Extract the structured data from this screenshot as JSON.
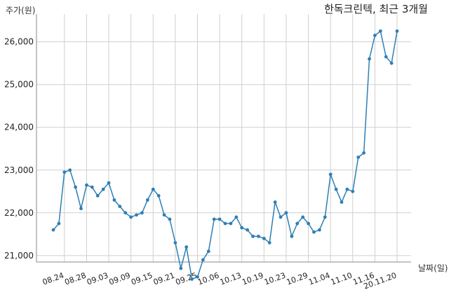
{
  "chart_data": {
    "type": "line",
    "title": "한독크린텍, 최근 3개월",
    "ylabel": "주가(원)",
    "xlabel": "날짜(일)",
    "ylim": [
      20850,
      26650
    ],
    "yticks": [
      21000,
      22000,
      23000,
      24000,
      25000,
      26000
    ],
    "ytick_labels": [
      "21,000",
      "22,000",
      "23,000",
      "24,000",
      "25,000",
      "26,000"
    ],
    "xtick_labels": [
      "08.24",
      "08.28",
      "09.03",
      "09.09",
      "09.15",
      "09.21",
      "09.25",
      "10.06",
      "10.13",
      "10.19",
      "10.23",
      "10.29",
      "11.04",
      "11.10",
      "11.16",
      "20.11.20"
    ],
    "xtick_index": [
      2,
      6,
      10,
      14,
      18,
      22,
      26,
      30,
      34,
      38,
      42,
      46,
      50,
      54,
      58,
      62
    ],
    "grid": true,
    "color": "#2e7fb5",
    "series": [
      {
        "values": [
          21600,
          21750,
          22950,
          23000,
          22600,
          22100,
          22650,
          22600,
          22400,
          22550,
          22700,
          22300,
          22150,
          22000,
          21900,
          21950,
          22000,
          22300,
          22550,
          22400,
          21950,
          21850,
          21300,
          20700,
          21200,
          20450,
          20500,
          20900,
          21100,
          21850,
          21850,
          21750,
          21750,
          21900,
          21650,
          21600,
          21450,
          21450,
          21400,
          21300,
          22250,
          21900,
          22000,
          21450,
          21750,
          21900,
          21750,
          21550,
          21600,
          21900,
          22900,
          22550,
          22250,
          22550,
          22500,
          23300,
          23400,
          25600,
          26150,
          26250,
          25650,
          25500,
          26250
        ]
      }
    ]
  }
}
